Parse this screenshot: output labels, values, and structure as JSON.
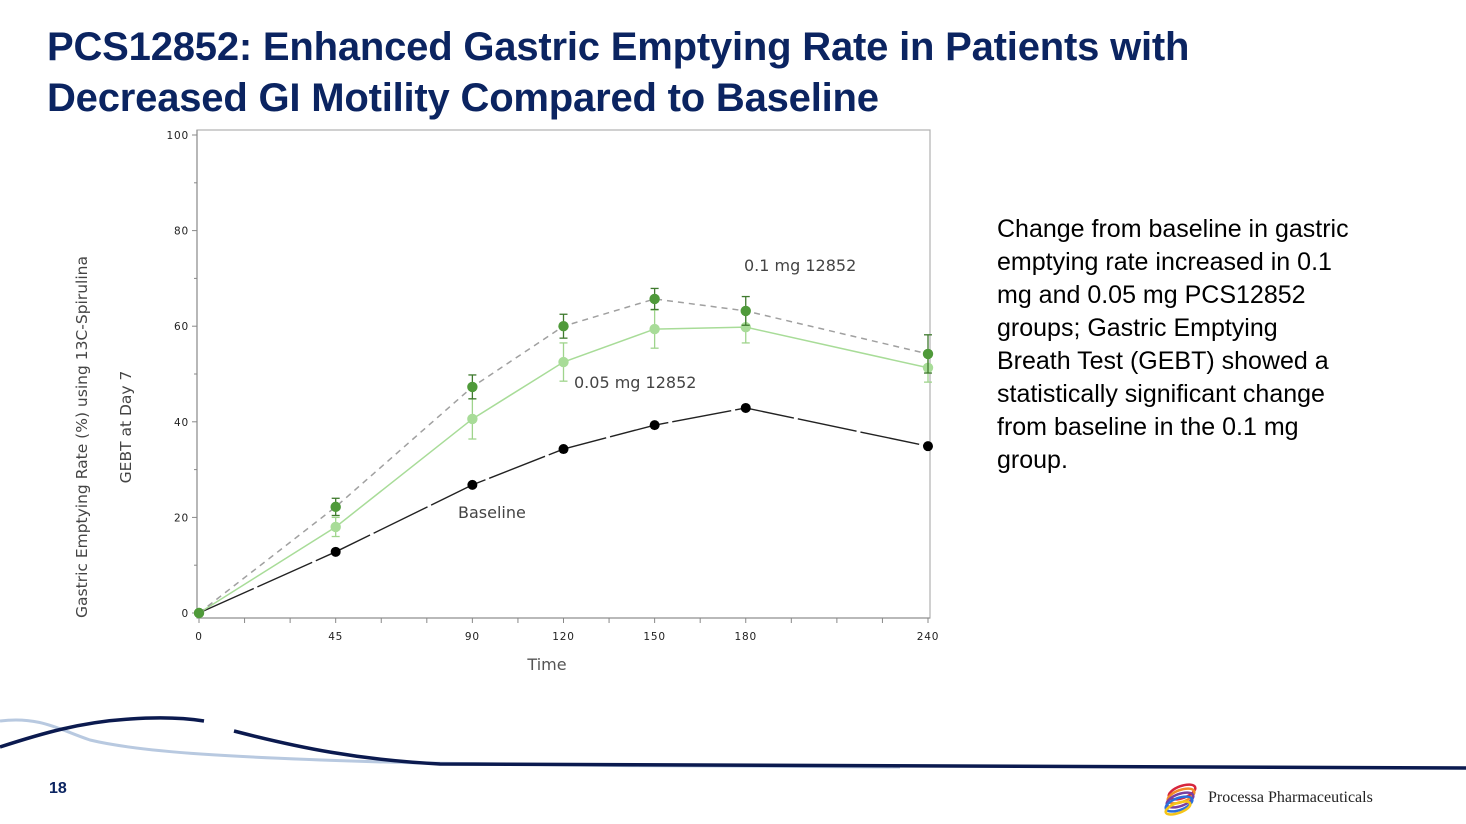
{
  "slide": {
    "title_lines": [
      "PCS12852: Enhanced Gastric Emptying Rate in Patients with",
      "Decreased GI Motility Compared to Baseline"
    ],
    "body_text": "Change from baseline in gastric emptying rate increased in 0.1 mg and 0.05 mg PCS12852 groups; Gastric Emptying Breath Test (GEBT) showed a statistically significant change from baseline in the 0.1 mg group.",
    "page_number": "18",
    "company_name": "Processa Pharmaceuticals",
    "colors": {
      "title": "#0b2461",
      "swoosh_dark": "#0b1a4f",
      "swoosh_light": "#b8c9e0"
    }
  },
  "chart_data": {
    "type": "line",
    "title": "",
    "xlabel": "Time",
    "ylabel_lines": [
      "Gastric Emptying Rate (%) using 13C-Spirulina",
      "GEBT at Day 7"
    ],
    "x": [
      0,
      45,
      90,
      120,
      150,
      180,
      240
    ],
    "x_ticks": [
      0,
      45,
      90,
      120,
      150,
      180,
      240
    ],
    "x_minor_ticks": [
      0,
      15,
      30,
      45,
      60,
      75,
      90,
      105,
      120,
      135,
      150,
      165,
      180,
      195,
      210,
      225,
      240
    ],
    "y_ticks": [
      0,
      20,
      40,
      60,
      80,
      100
    ],
    "xlim": [
      0,
      240
    ],
    "ylim": [
      0,
      100
    ],
    "grid": false,
    "legend": "inline-labels",
    "series": [
      {
        "name": "Baseline",
        "label": "Baseline",
        "color": "#000000",
        "line_style": "solid",
        "values": [
          0,
          12.8,
          26.8,
          34.3,
          39.3,
          42.9,
          34.9
        ],
        "errors": null
      },
      {
        "name": "0.05 mg 12852",
        "label": "0.05 mg 12852",
        "color": "#a8dc98",
        "line_style": "solid",
        "values": [
          0,
          18.0,
          40.6,
          52.5,
          59.4,
          59.8,
          51.3
        ],
        "errors": [
          0,
          2.0,
          4.2,
          4.0,
          4.0,
          3.3,
          3.0
        ]
      },
      {
        "name": "0.1 mg 12852",
        "label": "0.1 mg 12852",
        "color": "#4f9a3a",
        "line_style": "dashed",
        "values": [
          0,
          22.2,
          47.3,
          60.0,
          65.7,
          63.2,
          54.2
        ],
        "errors": [
          0,
          1.8,
          2.5,
          2.5,
          2.2,
          3.0,
          4.0
        ]
      }
    ],
    "annotations": [
      {
        "text": "0.1 mg 12852",
        "series": "0.1 mg 12852"
      },
      {
        "text": "0.05 mg 12852",
        "series": "0.05 mg 12852"
      },
      {
        "text": "Baseline",
        "series": "Baseline"
      }
    ]
  }
}
